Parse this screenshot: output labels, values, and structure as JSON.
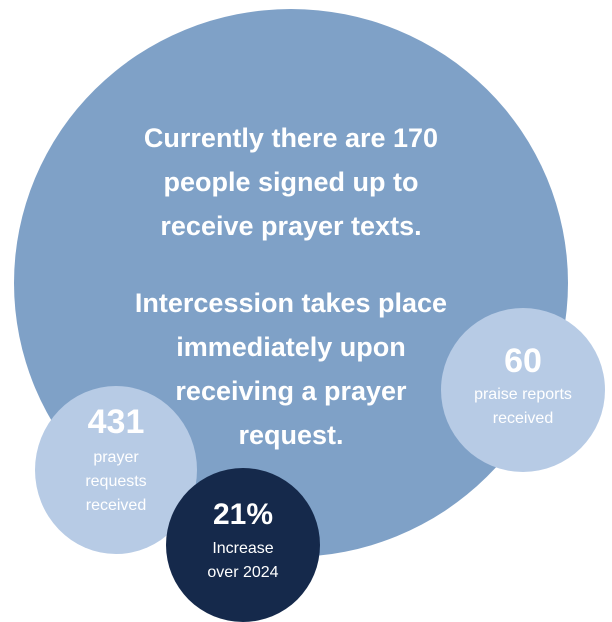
{
  "colors": {
    "main_circle": "#7fa1c7",
    "praise_circle": "#b7cbe5",
    "prayer_circle": "#b7cbe5",
    "increase_circle": "#15294b",
    "text": "#ffffff"
  },
  "main": {
    "paragraph1": [
      "Currently there are 170",
      "people signed up to",
      "receive prayer texts."
    ],
    "paragraph2": [
      "Intercession takes place",
      "immediately upon",
      "receiving a prayer",
      "request."
    ]
  },
  "stats": {
    "praise": {
      "number": "60",
      "desc": [
        "praise reports",
        "received"
      ]
    },
    "prayer": {
      "number": "431",
      "desc": [
        "prayer",
        "requests",
        "received"
      ]
    },
    "increase": {
      "number": "21%",
      "desc": [
        "Increase",
        "over 2024"
      ]
    }
  }
}
